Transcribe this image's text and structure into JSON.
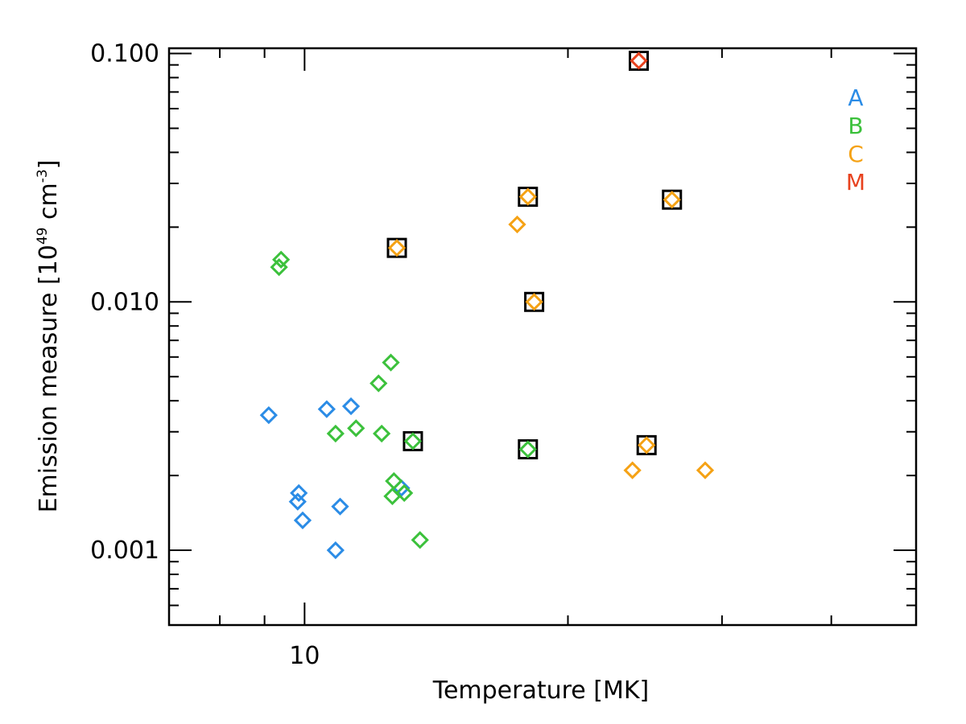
{
  "chart_data": {
    "type": "scatter",
    "title": "",
    "xlabel": "Temperature [MK]",
    "ylabel_main": "Emission measure [10",
    "ylabel_exp1": "49",
    "ylabel_mid": " cm",
    "ylabel_exp2": "-3",
    "ylabel_end": "]",
    "x_scale": "log",
    "y_scale": "log",
    "xlim": [
      7.0,
      50.0
    ],
    "ylim": [
      0.0005,
      0.105
    ],
    "x_ticks": [
      10
    ],
    "x_tick_labels": [
      "10"
    ],
    "y_ticks": [
      0.001,
      0.01,
      0.1
    ],
    "y_tick_labels": [
      "0.001",
      "0.010",
      "0.100"
    ],
    "grid": false,
    "legend_position": "top-right",
    "colors": {
      "A": "#2b8ce6",
      "B": "#3cc13c",
      "C": "#f5a215",
      "M": "#e8421e",
      "highlight_box": "#000000"
    },
    "series": [
      {
        "name": "A",
        "color": "#2b8ce6",
        "points": [
          {
            "x": 9.1,
            "y": 0.0035
          },
          {
            "x": 10.6,
            "y": 0.0037
          },
          {
            "x": 11.3,
            "y": 0.0038
          },
          {
            "x": 9.85,
            "y": 0.0017
          },
          {
            "x": 9.82,
            "y": 0.00157
          },
          {
            "x": 9.95,
            "y": 0.00132
          },
          {
            "x": 10.98,
            "y": 0.0015
          },
          {
            "x": 12.9,
            "y": 0.00178
          },
          {
            "x": 10.85,
            "y": 0.001
          }
        ]
      },
      {
        "name": "B",
        "color": "#3cc13c",
        "points": [
          {
            "x": 9.4,
            "y": 0.0148
          },
          {
            "x": 9.35,
            "y": 0.0138
          },
          {
            "x": 12.55,
            "y": 0.0057
          },
          {
            "x": 12.15,
            "y": 0.0047
          },
          {
            "x": 11.45,
            "y": 0.0031
          },
          {
            "x": 10.85,
            "y": 0.00295
          },
          {
            "x": 12.25,
            "y": 0.00295
          },
          {
            "x": 13.3,
            "y": 0.00275
          },
          {
            "x": 12.65,
            "y": 0.0019
          },
          {
            "x": 12.6,
            "y": 0.00165
          },
          {
            "x": 13.0,
            "y": 0.0017
          },
          {
            "x": 13.55,
            "y": 0.0011
          },
          {
            "x": 18.0,
            "y": 0.00255
          }
        ]
      },
      {
        "name": "C",
        "color": "#f5a215",
        "points": [
          {
            "x": 18.0,
            "y": 0.0265
          },
          {
            "x": 26.3,
            "y": 0.0258
          },
          {
            "x": 17.5,
            "y": 0.0205
          },
          {
            "x": 12.75,
            "y": 0.0165
          },
          {
            "x": 18.3,
            "y": 0.01
          },
          {
            "x": 24.6,
            "y": 0.00265
          },
          {
            "x": 23.7,
            "y": 0.0021
          },
          {
            "x": 28.7,
            "y": 0.0021
          }
        ]
      },
      {
        "name": "M",
        "color": "#e8421e",
        "points": [
          {
            "x": 24.1,
            "y": 0.0935
          }
        ]
      }
    ],
    "boxed_points": [
      {
        "x": 24.1,
        "y": 0.0935
      },
      {
        "x": 18.0,
        "y": 0.0265
      },
      {
        "x": 26.3,
        "y": 0.0258
      },
      {
        "x": 12.75,
        "y": 0.0165
      },
      {
        "x": 18.3,
        "y": 0.01
      },
      {
        "x": 13.3,
        "y": 0.00275
      },
      {
        "x": 18.0,
        "y": 0.00255
      },
      {
        "x": 24.6,
        "y": 0.00265
      }
    ],
    "legend": [
      "A",
      "B",
      "C",
      "M"
    ]
  }
}
